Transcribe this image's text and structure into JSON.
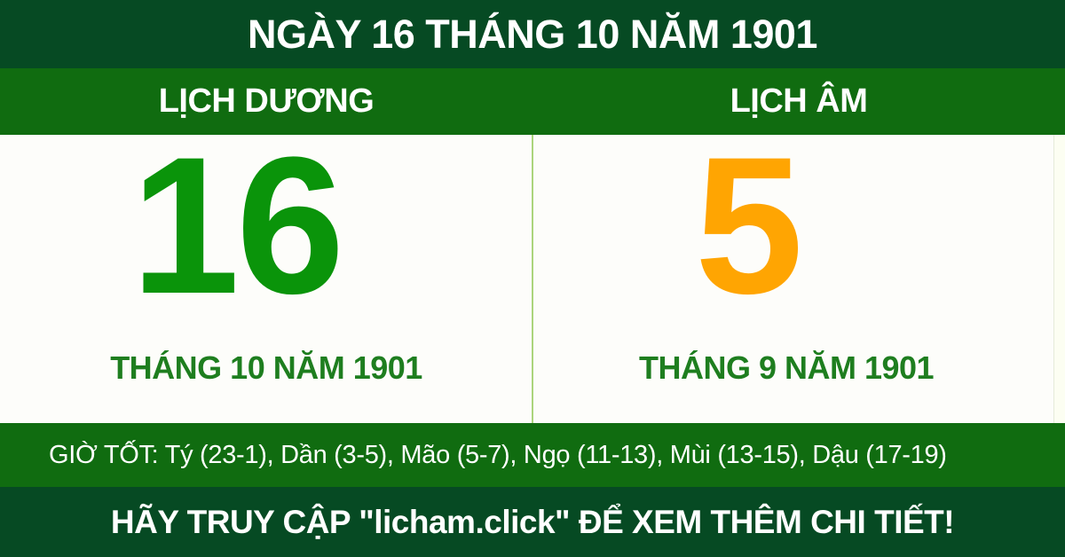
{
  "header": {
    "title": "NGÀY 16 THÁNG 10 NĂM 1901"
  },
  "calendar": {
    "solar": {
      "label": "LỊCH DƯƠNG",
      "day": "16",
      "month_year": "THÁNG 10 NĂM 1901"
    },
    "lunar": {
      "label": "LỊCH ÂM",
      "day": "5",
      "month_year": "THÁNG 9 NĂM 1901"
    }
  },
  "good_hours": {
    "text": "GIỜ TỐT: Tý (23-1), Dần (3-5), Mão (5-7), Ngọ (11-13), Mùi (13-15), Dậu (17-19)"
  },
  "footer": {
    "text": "HÃY TRUY CẬP \"licham.click\" ĐỂ XEM THÊM CHI TIẾT!"
  },
  "colors": {
    "dark_green": "#064a23",
    "green": "#106c10",
    "solar_day": "#0a940a",
    "lunar_day": "#ffa502",
    "month_text": "#1e7e1f",
    "divider": "#abd47c",
    "panel_bg": "#fdfdfa"
  }
}
